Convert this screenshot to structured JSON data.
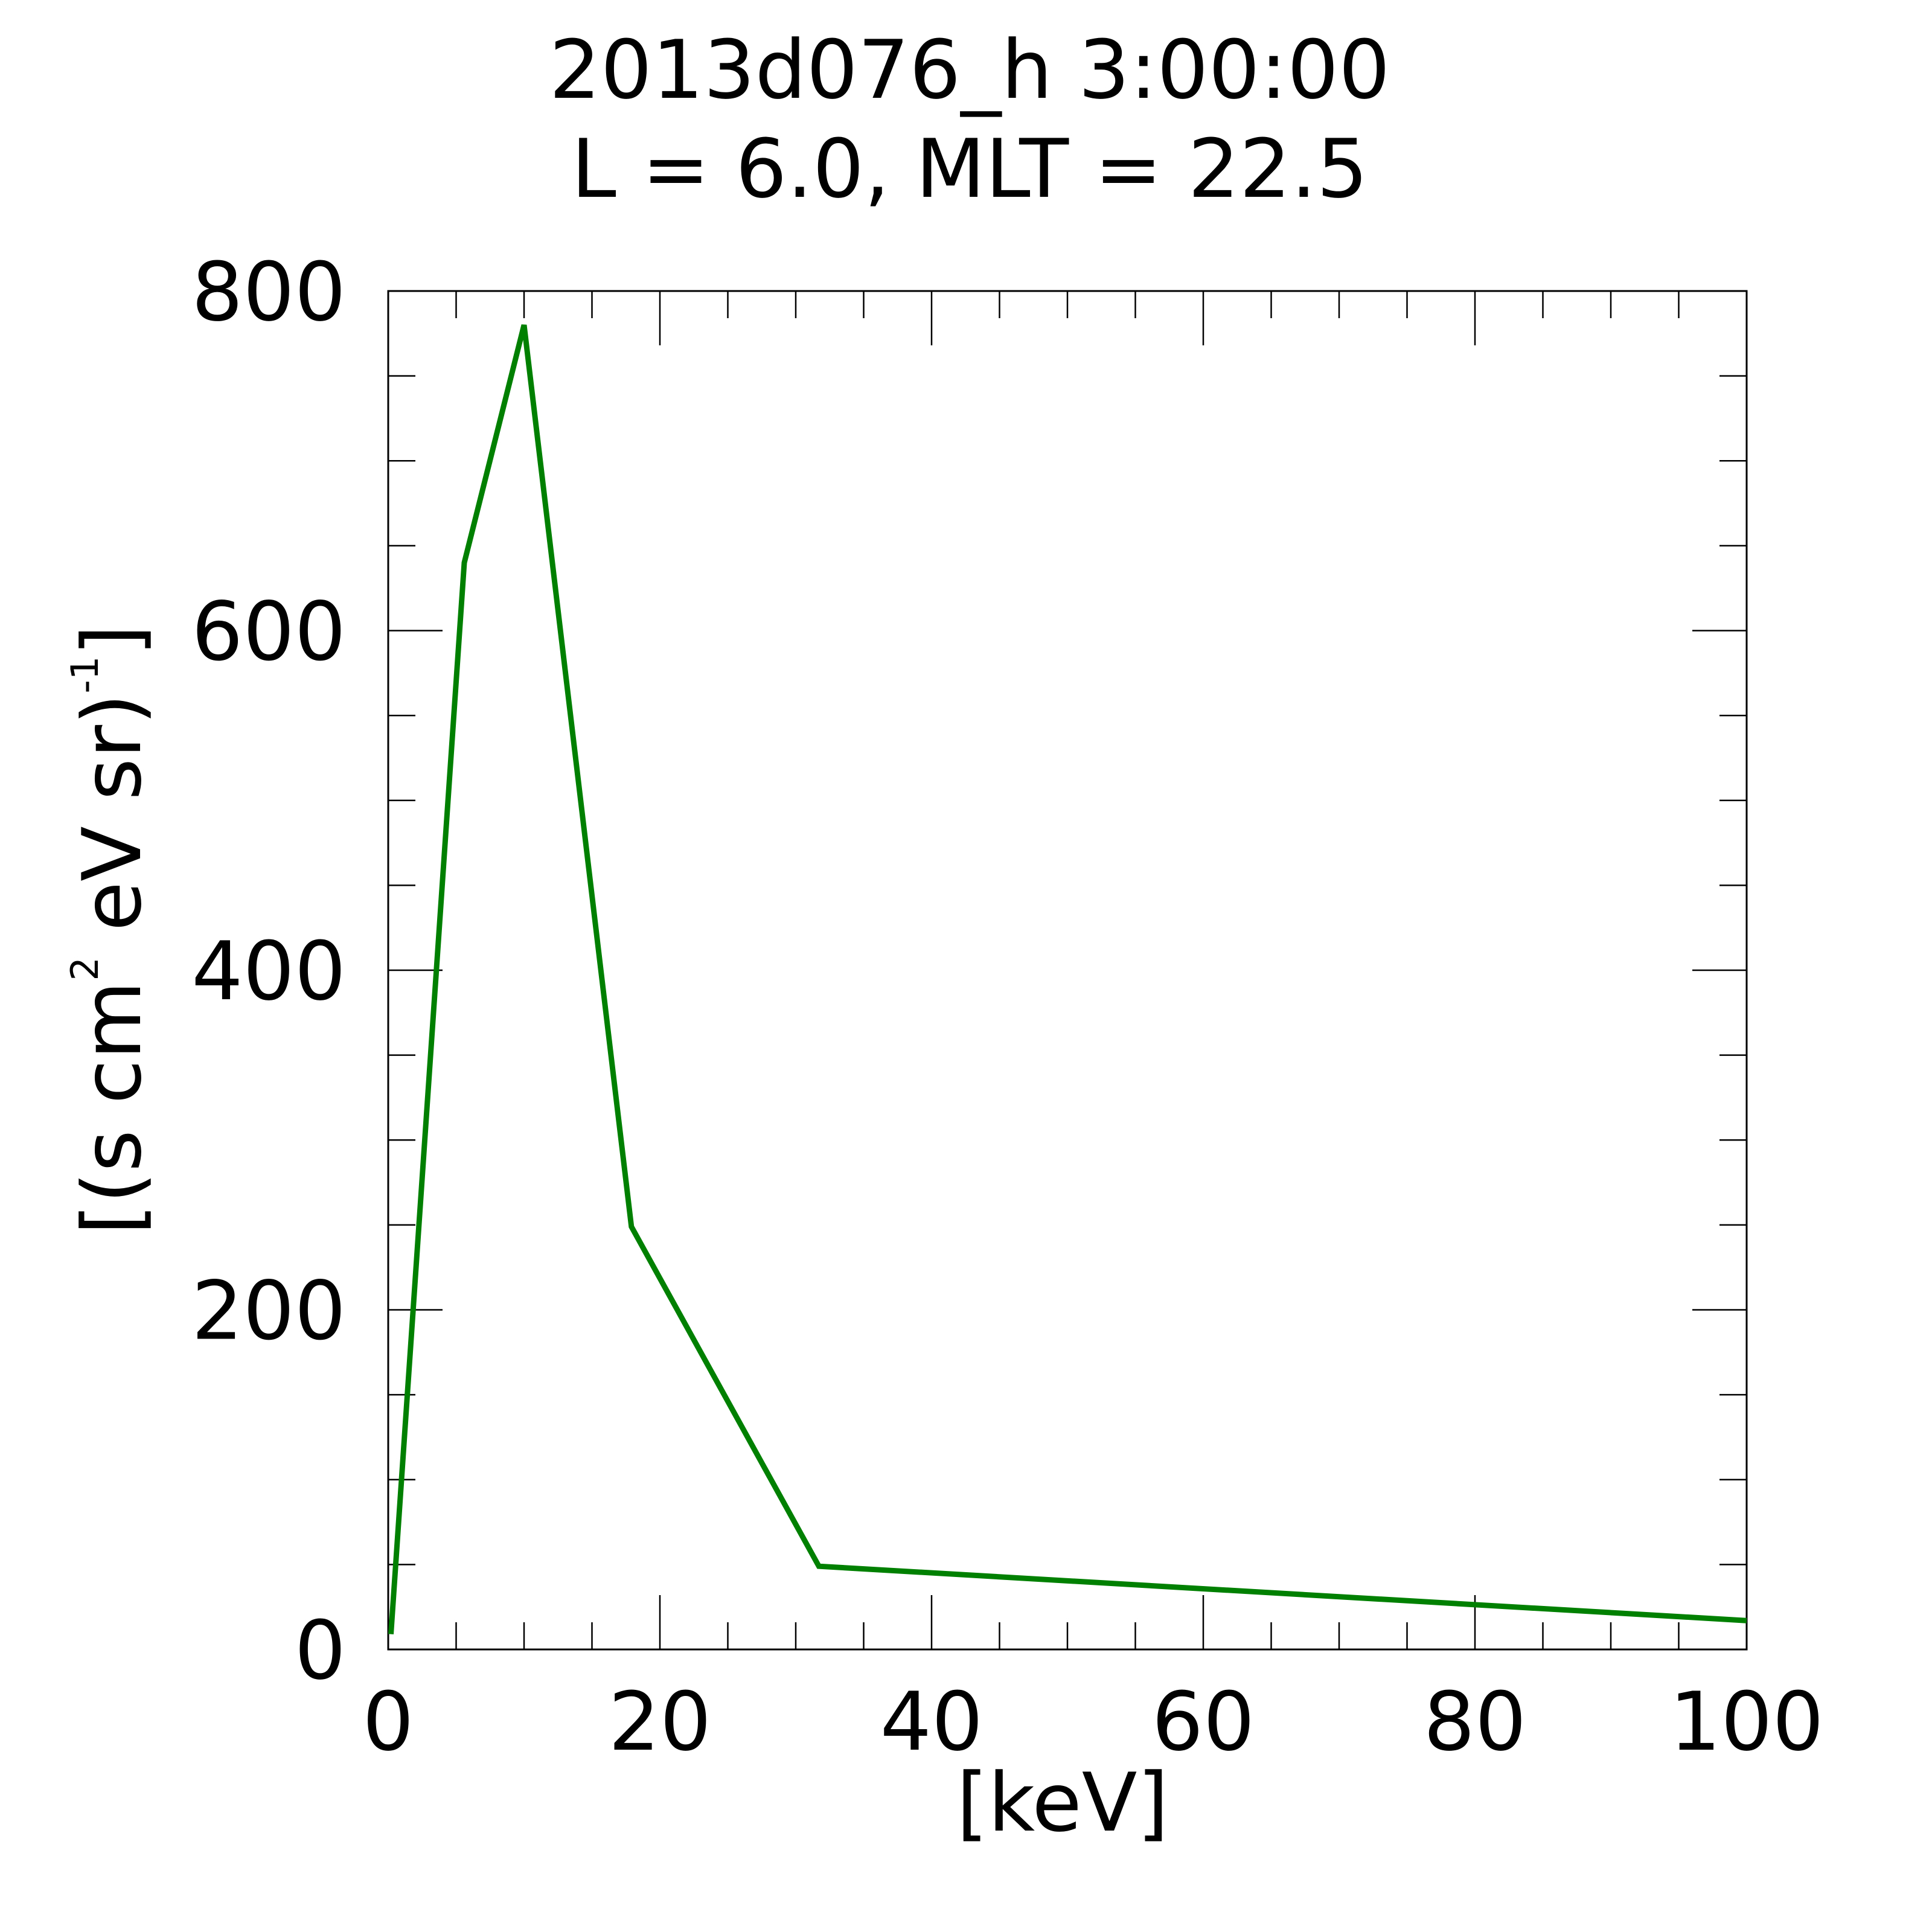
{
  "chart_data": {
    "type": "line",
    "title": "2013d076_h   3:00:00",
    "subtitle": "L = 6.0, MLT = 22.5",
    "xlabel": "[keV]",
    "ylabel": {
      "part1": "[(s cm",
      "sup1": "2",
      "part2": " eV sr)",
      "sup2": "-1",
      "part3": "]"
    },
    "xlim": [
      0,
      100
    ],
    "ylim": [
      0,
      800
    ],
    "x_major_ticks": [
      0,
      20,
      40,
      60,
      80,
      100
    ],
    "x_tick_labels": [
      "0",
      "20",
      "40",
      "60",
      "80",
      "100"
    ],
    "x_minor_step": 5,
    "y_major_ticks": [
      0,
      200,
      400,
      600,
      800
    ],
    "y_tick_labels": [
      "0",
      "200",
      "400",
      "600",
      "800"
    ],
    "y_minor_step": 50,
    "grid": false,
    "legend": "none",
    "series": [
      {
        "color": "#008000",
        "x": [
          0.2,
          5.6,
          10.0,
          17.9,
          31.7,
          100.0
        ],
        "y": [
          9,
          640,
          780,
          249,
          49,
          17
        ]
      }
    ]
  }
}
